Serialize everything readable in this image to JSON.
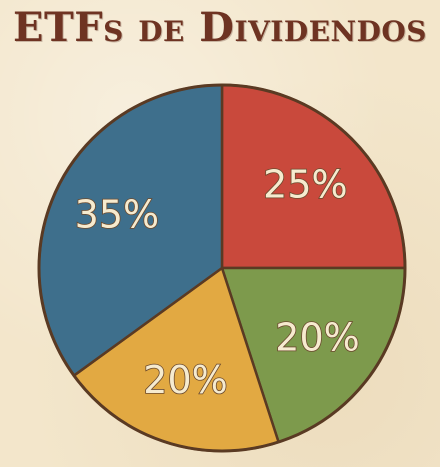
{
  "chart_data": {
    "type": "pie",
    "title": "ETFs de Dividendos",
    "slices": [
      {
        "label": "25%",
        "value": 25,
        "color": "#c9493c"
      },
      {
        "label": "20%",
        "value": 20,
        "color": "#7d9a4c"
      },
      {
        "label": "20%",
        "value": 20,
        "color": "#e2a942"
      },
      {
        "label": "35%",
        "value": 35,
        "color": "#3e6f8c"
      }
    ],
    "start": "top",
    "direction": "clockwise",
    "legend": "none"
  }
}
